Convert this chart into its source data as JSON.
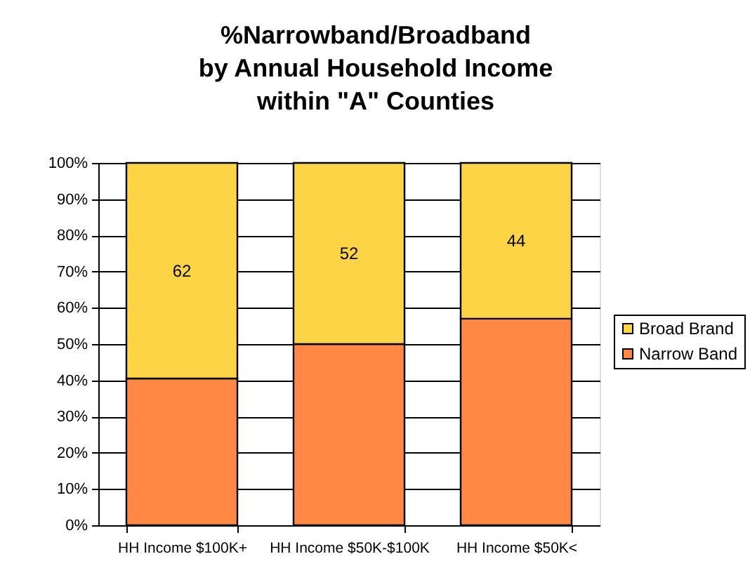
{
  "chart_data": {
    "type": "bar",
    "title": "%Narrowband/Broadband\nby Annual Household Income\nwithin \"A\" Counties",
    "categories": [
      "HH Income $100K+",
      "HH Income $50K-$100K",
      "HH Income $50K<"
    ],
    "stacked": true,
    "series": [
      {
        "name": "Narrow Band",
        "color": "#ff8844",
        "values": [
          40.5,
          50,
          57
        ]
      },
      {
        "name": "Broad Brand",
        "color": "#fdd446",
        "values": [
          59.5,
          50,
          43
        ]
      }
    ],
    "annotations": [
      "62",
      "52",
      "44"
    ],
    "ylim": [
      0,
      100
    ],
    "yticks": [
      {
        "value": 0,
        "label": "0%"
      },
      {
        "value": 10,
        "label": "10%"
      },
      {
        "value": 20,
        "label": "20%"
      },
      {
        "value": 30,
        "label": "30%"
      },
      {
        "value": 40,
        "label": "40%"
      },
      {
        "value": 50,
        "label": "50%"
      },
      {
        "value": 60,
        "label": "60%"
      },
      {
        "value": 70,
        "label": "70%"
      },
      {
        "value": 80,
        "label": "80%"
      },
      {
        "value": 90,
        "label": "90%"
      },
      {
        "value": 100,
        "label": "100%"
      }
    ],
    "grid": "y",
    "legend": "right"
  }
}
